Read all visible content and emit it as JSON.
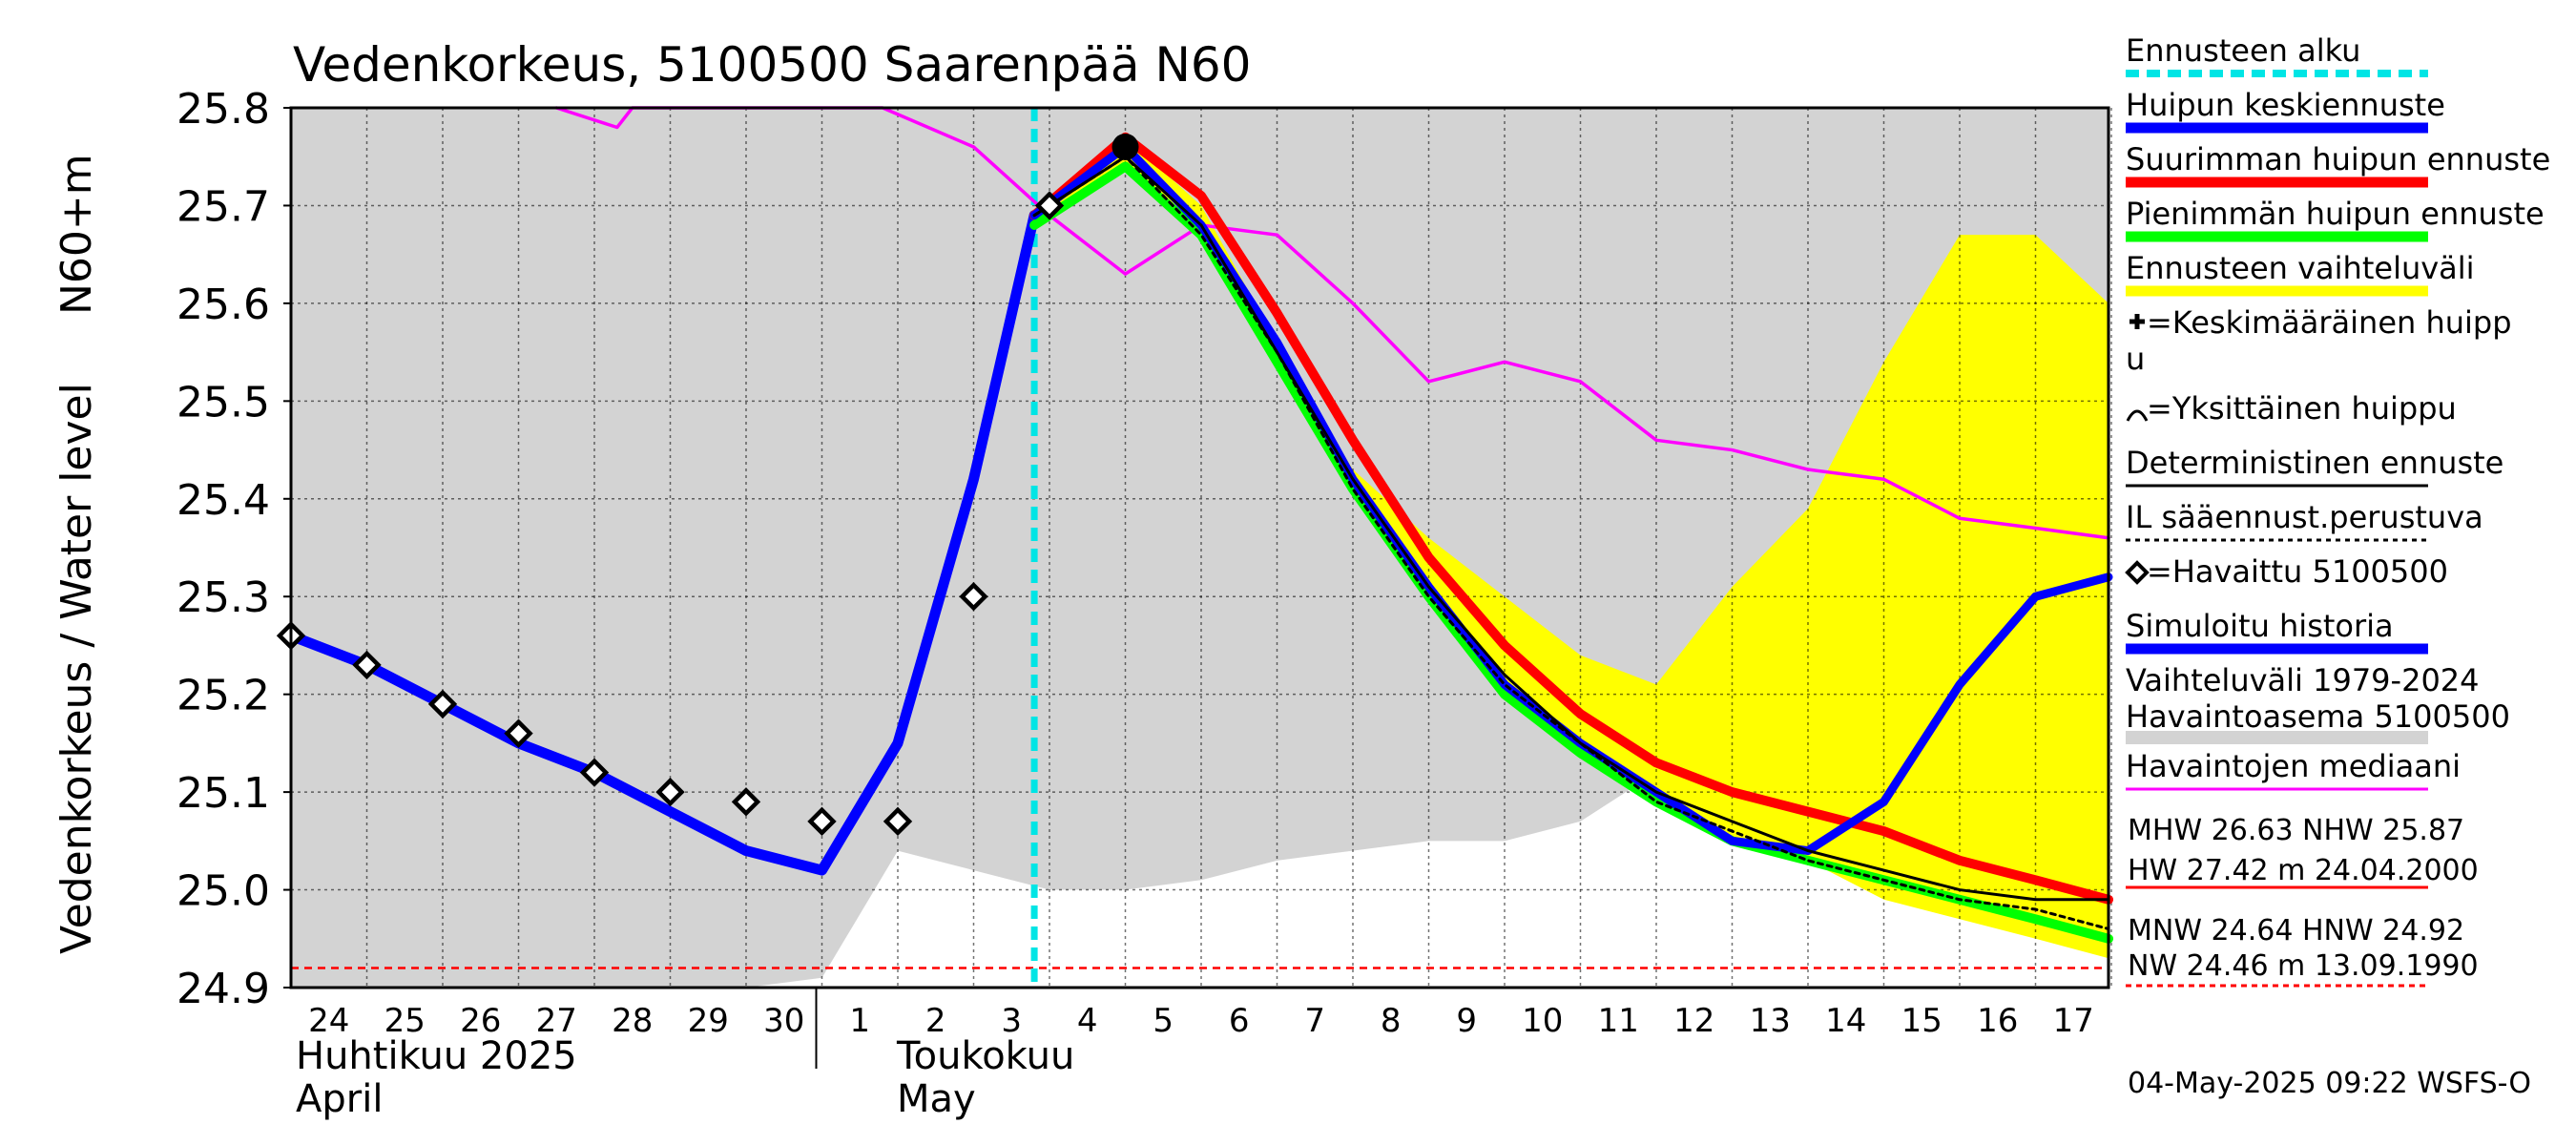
{
  "chart_data": {
    "type": "line",
    "title": "Vedenkorkeus, 5100500 Saarenpää N60",
    "ylabel_main": "Vedenkorkeus / Water level",
    "ylabel_unit": "N60+m",
    "ylim": [
      24.9,
      25.8
    ],
    "yticks": [
      "25.8",
      "25.7",
      "25.6",
      "25.5",
      "25.4",
      "25.3",
      "25.2",
      "25.1",
      "25.0",
      "24.9"
    ],
    "ytick_values": [
      25.8,
      25.7,
      25.6,
      25.5,
      25.4,
      25.3,
      25.2,
      25.1,
      25.0,
      24.9
    ],
    "x_days": [
      "24",
      "25",
      "26",
      "27",
      "28",
      "29",
      "30",
      "1",
      "2",
      "3",
      "4",
      "5",
      "6",
      "7",
      "8",
      "9",
      "10",
      "11",
      "12",
      "13",
      "14",
      "15",
      "16",
      "17"
    ],
    "month_labels": {
      "april_fi": "Huhtikuu  2025",
      "april_en": "April",
      "may_fi": "Toukokuu",
      "may_en": "May"
    },
    "forecast_start_day_index": 9.8,
    "range_band_upper": [
      25.8,
      25.8,
      25.8,
      25.8,
      25.8,
      25.8,
      25.8,
      25.8,
      25.8,
      25.8,
      25.8,
      25.8,
      25.8,
      25.8,
      25.8,
      25.8,
      25.8,
      25.8,
      25.8,
      25.8,
      25.8,
      25.8,
      25.8,
      25.8,
      25.8
    ],
    "range_band_lower": [
      null,
      null,
      null,
      null,
      null,
      null,
      null,
      24.91,
      25.04,
      25.02,
      25.0,
      25.0,
      25.01,
      25.03,
      25.04,
      25.05,
      25.05,
      25.07,
      25.12,
      25.13,
      25.1,
      25.09,
      25.07,
      25.07,
      25.05
    ],
    "series": [
      {
        "name": "Havaintojen mediaani",
        "color": "#ff00ff",
        "x": [
          3.5,
          4.3,
          4.5,
          7.8,
          9.0,
          10.0,
          11.0,
          12.0,
          13.0,
          14.0,
          15.0,
          16.0,
          17.0,
          18.0,
          19.0,
          20.0,
          21.0,
          22.0,
          23.0,
          24.0
        ],
        "y": [
          25.8,
          25.78,
          25.8,
          25.8,
          25.76,
          25.69,
          25.63,
          25.68,
          25.67,
          25.6,
          25.52,
          25.54,
          25.52,
          25.46,
          25.45,
          25.43,
          25.42,
          25.38,
          25.37,
          25.36
        ]
      },
      {
        "name": "Simuloitu historia",
        "color": "#0000ff",
        "x": [
          0,
          1,
          2,
          3,
          4,
          5,
          6,
          7,
          8,
          9,
          9.8
        ],
        "y": [
          25.26,
          25.23,
          25.19,
          25.15,
          25.12,
          25.08,
          25.04,
          25.02,
          25.15,
          25.42,
          25.69
        ]
      },
      {
        "name": "Ennusteen vaihteluväli upper",
        "color": "#ffff00",
        "x": [
          9.8,
          11,
          12,
          13,
          14,
          15,
          16,
          17,
          18,
          19,
          20,
          21,
          22,
          23,
          24
        ],
        "y": [
          25.69,
          25.77,
          25.7,
          25.56,
          25.43,
          25.36,
          25.3,
          25.24,
          25.21,
          25.31,
          25.39,
          25.54,
          25.67,
          25.67,
          25.6
        ]
      },
      {
        "name": "Suurimman huipun ennuste",
        "color": "#ff0000",
        "x": [
          9.8,
          11,
          12,
          13,
          14,
          15,
          16,
          17,
          18,
          19,
          20,
          21,
          22,
          23,
          24
        ],
        "y": [
          25.69,
          25.77,
          25.71,
          25.59,
          25.46,
          25.34,
          25.25,
          25.18,
          25.13,
          25.1,
          25.08,
          25.06,
          25.03,
          25.01,
          24.99
        ]
      },
      {
        "name": "Pienimmän huipun ennuste",
        "color": "#00ff00",
        "x": [
          9.8,
          11,
          12,
          13,
          14,
          15,
          16,
          17,
          18,
          19,
          20,
          21,
          22,
          23,
          24
        ],
        "y": [
          25.68,
          25.74,
          25.67,
          25.54,
          25.41,
          25.3,
          25.2,
          25.14,
          25.09,
          25.05,
          25.03,
          25.01,
          24.99,
          24.97,
          24.95
        ]
      },
      {
        "name": "Huipun keskiennuste",
        "color": "#0000ff",
        "x": [
          9.8,
          11,
          12,
          13,
          14,
          15,
          16,
          17,
          18,
          19,
          20,
          21,
          22,
          23,
          24
        ],
        "y": [
          25.69,
          25.76,
          25.68,
          25.56,
          25.42,
          25.31,
          25.21,
          25.15,
          25.1,
          25.05,
          25.04,
          25.09,
          25.21,
          25.3,
          25.32
        ]
      },
      {
        "name": "Deterministinen ennuste",
        "color": "#000000",
        "x": [
          9.8,
          11,
          12,
          13,
          14,
          15,
          16,
          17,
          18,
          19,
          20,
          21,
          22,
          23,
          24
        ],
        "y": [
          25.69,
          25.75,
          25.68,
          25.55,
          25.42,
          25.31,
          25.22,
          25.15,
          25.1,
          25.07,
          25.04,
          25.02,
          25.0,
          24.99,
          24.99
        ]
      },
      {
        "name": "IL sääennust.perustuva",
        "color": "#000000",
        "dashed": true,
        "x": [
          9.8,
          11,
          12,
          13,
          14,
          15,
          16,
          17,
          18,
          19,
          20,
          21,
          22,
          23,
          24
        ],
        "y": [
          25.69,
          25.75,
          25.67,
          25.55,
          25.41,
          25.3,
          25.21,
          25.15,
          25.09,
          25.06,
          25.03,
          25.01,
          24.99,
          24.98,
          24.96
        ]
      }
    ],
    "observed": {
      "name": "Havaittu 5100500",
      "x": [
        0,
        1,
        2,
        3,
        4,
        5,
        6,
        7,
        8,
        9,
        10
      ],
      "y": [
        25.26,
        25.23,
        25.19,
        25.16,
        25.12,
        25.1,
        25.09,
        25.07,
        25.07,
        25.3,
        25.7
      ]
    },
    "peak_marker": {
      "x": 11,
      "y": 25.76
    },
    "nw_line": 24.92,
    "legend": [
      {
        "label": "Ennusteen alku",
        "kind": "dash",
        "color": "#00e5e5"
      },
      {
        "label": "Huipun keskiennuste",
        "kind": "line",
        "color": "#0000ff"
      },
      {
        "label": "Suurimman huipun ennuste",
        "kind": "line",
        "color": "#ff0000"
      },
      {
        "label": "Pienimmän huipun ennuste",
        "kind": "line",
        "color": "#00ff00"
      },
      {
        "label": "Ennusteen vaihteluväli",
        "kind": "line",
        "color": "#ffff00"
      },
      {
        "label": "=Keskimääräinen huipp",
        "label2": "u",
        "kind": "plus"
      },
      {
        "label": "=Yksittäinen huippu",
        "kind": "arc"
      },
      {
        "label": "Deterministinen ennuste",
        "kind": "thin",
        "color": "#000000"
      },
      {
        "label": "IL sääennust.perustuva",
        "kind": "dotted",
        "color": "#000000"
      },
      {
        "label": "=Havaittu 5100500",
        "kind": "diamond"
      },
      {
        "label": "Simuloitu historia",
        "kind": "line",
        "color": "#0000ff"
      },
      {
        "label": "Vaihteluväli 1979-2024",
        "label2": " Havaintoasema 5100500",
        "kind": "gray",
        "color": "#d3d3d3"
      },
      {
        "label": "Havaintojen mediaani",
        "kind": "thin",
        "color": "#ff00ff"
      }
    ],
    "stats": {
      "line1": "MHW  26.63 NHW  25.87",
      "line2": "HW  27.42 m 24.04.2000",
      "line3": "MNW  24.64 HNW  24.92",
      "line4": "NW  24.46 m 13.09.1990"
    },
    "footer": "04-May-2025 09:22 WSFS-O"
  }
}
